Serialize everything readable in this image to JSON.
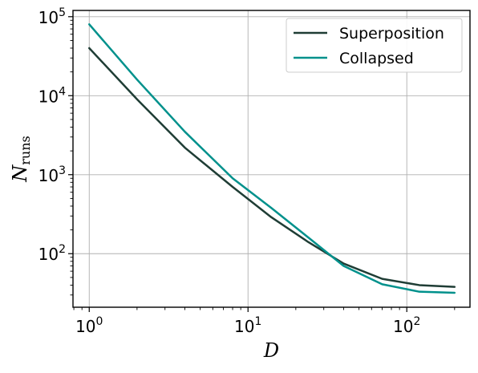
{
  "chart_data": {
    "type": "line",
    "title": "",
    "xlabel": "D",
    "ylabel": {
      "main": "N",
      "subscript": "runs"
    },
    "xscale": "log",
    "yscale": "log",
    "xlim": [
      0.79,
      250
    ],
    "ylim": [
      21,
      120000
    ],
    "x_ticks": [
      {
        "value": 1,
        "base": "10",
        "exp": "0"
      },
      {
        "value": 10,
        "base": "10",
        "exp": "1"
      },
      {
        "value": 100,
        "base": "10",
        "exp": "2"
      }
    ],
    "y_ticks": [
      {
        "value": 100,
        "base": "10",
        "exp": "2"
      },
      {
        "value": 1000,
        "base": "10",
        "exp": "3"
      },
      {
        "value": 10000,
        "base": "10",
        "exp": "4"
      },
      {
        "value": 100000,
        "base": "10",
        "exp": "5"
      }
    ],
    "grid": true,
    "legend_position": "top-right",
    "series": [
      {
        "name": "Superposition",
        "color": "#1f3d35",
        "x": [
          1,
          2,
          4,
          8,
          14,
          24,
          40,
          70,
          120,
          200
        ],
        "y": [
          40000,
          9000,
          2200,
          700,
          290,
          140,
          75,
          48,
          40,
          38
        ]
      },
      {
        "name": "Collapsed",
        "color": "#00918c",
        "x": [
          1,
          2,
          4,
          8,
          14,
          24,
          40,
          70,
          120,
          200
        ],
        "y": [
          80000,
          16000,
          3500,
          900,
          380,
          160,
          70,
          41,
          33,
          32
        ]
      }
    ]
  }
}
